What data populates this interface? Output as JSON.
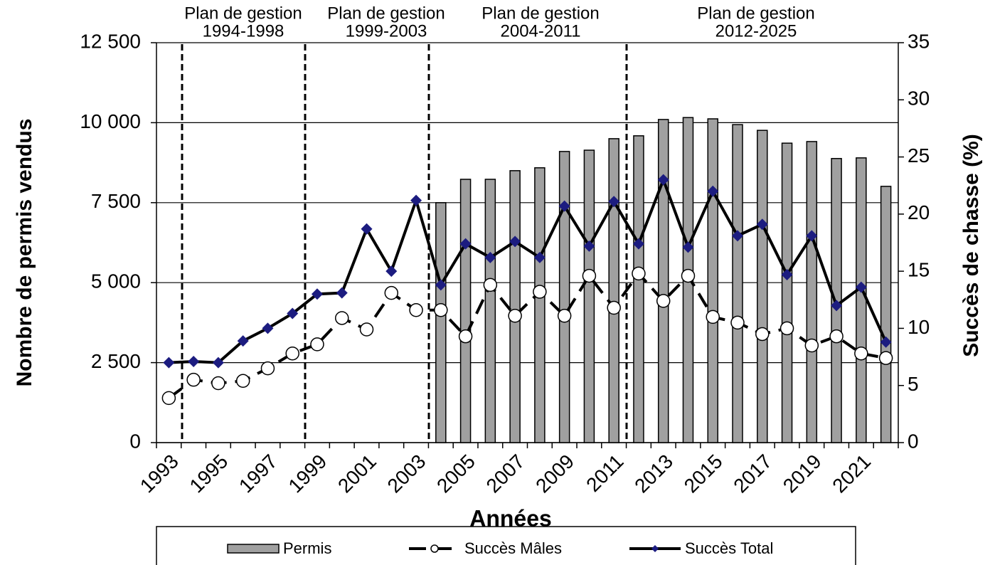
{
  "chart_data": {
    "type": "bar",
    "y_label": "Nombre de permis vendus",
    "y2_label": "Succès de chasse (%)",
    "x_label": "Années",
    "annotations": [
      [
        "Plan de gestion",
        "1994-1998"
      ],
      [
        "Plan de gestion",
        "1999-2003"
      ],
      [
        "Plan de gestion",
        "2004-2011"
      ],
      [
        "Plan de gestion",
        "2012-2025"
      ]
    ],
    "categories": [
      "1993",
      null,
      "1995",
      null,
      "1997",
      null,
      "1999",
      null,
      "2001",
      null,
      "2003",
      null,
      "2005",
      null,
      "2007",
      null,
      "2009",
      null,
      "2011",
      null,
      "2013",
      null,
      "2015",
      null,
      "2017",
      null,
      "2019",
      null,
      "2021",
      null
    ],
    "series": [
      {
        "name": "Permis",
        "type": "bar",
        "color": "#a0a0a0",
        "values": [
          null,
          null,
          null,
          null,
          null,
          null,
          null,
          null,
          null,
          null,
          null,
          7500,
          8230,
          8230,
          8500,
          8590,
          9100,
          9140,
          9500,
          9590,
          10100,
          10160,
          10120,
          9940,
          9760,
          9360,
          9410,
          8880,
          8900,
          8010
        ]
      },
      {
        "name": "Succès Mâles",
        "type": "line",
        "axis": "y2",
        "color": "#000000",
        "dashed": true,
        "marker": "circle",
        "values": [
          3.9,
          5.5,
          5.2,
          5.4,
          6.5,
          7.8,
          8.6,
          10.9,
          9.9,
          13.1,
          11.6,
          11.6,
          9.3,
          13.8,
          11.1,
          13.2,
          11.1,
          14.6,
          11.8,
          14.8,
          12.4,
          14.6,
          11.0,
          10.5,
          9.5,
          10.0,
          8.5,
          9.3,
          7.8,
          7.4
        ]
      },
      {
        "name": "Succès Total",
        "type": "line",
        "axis": "y2",
        "color": "#000000",
        "dashed": false,
        "marker": "diamond",
        "marker_color": "#1c1c80",
        "values": [
          7.0,
          7.1,
          7.0,
          8.9,
          10.0,
          11.3,
          13.0,
          13.1,
          18.7,
          15.0,
          21.2,
          13.8,
          17.4,
          16.2,
          17.6,
          16.2,
          20.7,
          17.2,
          21.1,
          17.4,
          23.0,
          17.1,
          22.0,
          18.1,
          19.1,
          14.7,
          18.1,
          12.0,
          13.6,
          8.8
        ]
      }
    ],
    "ylim": [
      0,
      12500
    ],
    "yticks": [
      0,
      {
        "value": 2500,
        "label": "2 500"
      },
      {
        "value": 5000,
        "label": "5 000"
      },
      {
        "value": 7500,
        "label": "7 500"
      },
      {
        "value": 10000,
        "label": "10 000"
      },
      {
        "value": 12500,
        "label": "12 500"
      }
    ],
    "y2lim": [
      0,
      35
    ],
    "y2ticks": [
      0,
      5,
      10,
      15,
      20,
      25,
      30,
      35
    ],
    "grid": true,
    "legend": "bottom"
  }
}
